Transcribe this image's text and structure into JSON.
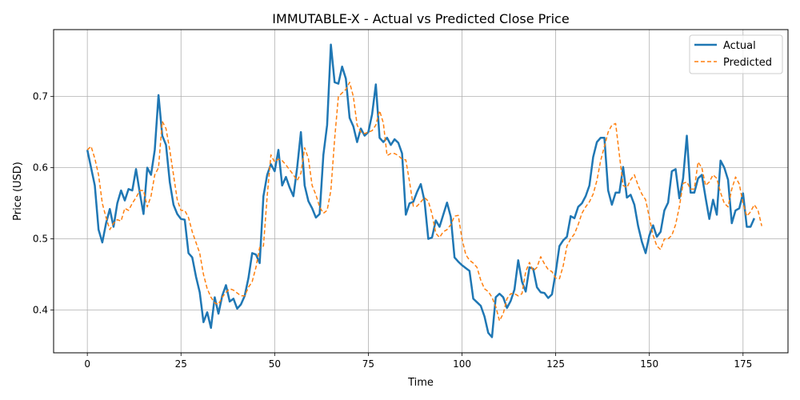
{
  "chart_data": {
    "type": "line",
    "title": "IMMUTABLE-X - Actual vs Predicted Close Price",
    "xlabel": "Time",
    "ylabel": "Price (USD)",
    "xlim": [
      -9,
      187
    ],
    "ylim": [
      0.34,
      0.794
    ],
    "xticks": [
      0,
      25,
      50,
      75,
      100,
      125,
      150,
      175
    ],
    "yticks": [
      0.4,
      0.5,
      0.6,
      0.7
    ],
    "ytick_labels": [
      "0.4",
      "0.5",
      "0.6",
      "0.7"
    ],
    "grid": true,
    "legend_position": "top-right",
    "series": [
      {
        "name": "Actual",
        "color": "#1f77b4",
        "style": "solid",
        "values": [
          0.625,
          0.6,
          0.575,
          0.513,
          0.495,
          0.522,
          0.542,
          0.517,
          0.55,
          0.568,
          0.554,
          0.57,
          0.568,
          0.598,
          0.565,
          0.535,
          0.6,
          0.59,
          0.625,
          0.702,
          0.645,
          0.632,
          0.58,
          0.548,
          0.535,
          0.528,
          0.527,
          0.48,
          0.474,
          0.447,
          0.425,
          0.383,
          0.397,
          0.375,
          0.418,
          0.395,
          0.42,
          0.435,
          0.412,
          0.416,
          0.402,
          0.408,
          0.42,
          0.445,
          0.48,
          0.478,
          0.466,
          0.56,
          0.59,
          0.605,
          0.595,
          0.625,
          0.575,
          0.587,
          0.572,
          0.56,
          0.6,
          0.65,
          0.575,
          0.553,
          0.543,
          0.53,
          0.535,
          0.618,
          0.66,
          0.773,
          0.72,
          0.718,
          0.742,
          0.725,
          0.67,
          0.658,
          0.636,
          0.655,
          0.645,
          0.65,
          0.675,
          0.717,
          0.642,
          0.636,
          0.642,
          0.632,
          0.64,
          0.635,
          0.62,
          0.534,
          0.55,
          0.552,
          0.566,
          0.577,
          0.553,
          0.5,
          0.502,
          0.526,
          0.517,
          0.534,
          0.551,
          0.531,
          0.474,
          0.468,
          0.463,
          0.459,
          0.455,
          0.416,
          0.411,
          0.406,
          0.391,
          0.368,
          0.362,
          0.418,
          0.423,
          0.418,
          0.403,
          0.413,
          0.429,
          0.47,
          0.44,
          0.426,
          0.46,
          0.458,
          0.432,
          0.425,
          0.424,
          0.417,
          0.422,
          0.453,
          0.49,
          0.498,
          0.503,
          0.532,
          0.529,
          0.545,
          0.55,
          0.56,
          0.575,
          0.615,
          0.636,
          0.642,
          0.642,
          0.568,
          0.548,
          0.565,
          0.565,
          0.601,
          0.558,
          0.562,
          0.548,
          0.518,
          0.496,
          0.48,
          0.505,
          0.519,
          0.503,
          0.51,
          0.54,
          0.551,
          0.595,
          0.598,
          0.557,
          0.585,
          0.645,
          0.565,
          0.565,
          0.585,
          0.59,
          0.558,
          0.528,
          0.555,
          0.534,
          0.61,
          0.6,
          0.583,
          0.522,
          0.54,
          0.543,
          0.564,
          0.517,
          0.517,
          0.529
        ]
      },
      {
        "name": "Predicted",
        "color": "#ff7f0e",
        "style": "dashed",
        "values": [
          0.625,
          0.63,
          0.613,
          0.59,
          0.55,
          0.53,
          0.513,
          0.522,
          0.527,
          0.525,
          0.543,
          0.54,
          0.55,
          0.558,
          0.568,
          0.568,
          0.545,
          0.56,
          0.59,
          0.6,
          0.665,
          0.655,
          0.625,
          0.59,
          0.555,
          0.54,
          0.54,
          0.53,
          0.51,
          0.495,
          0.48,
          0.45,
          0.43,
          0.418,
          0.41,
          0.408,
          0.418,
          0.425,
          0.43,
          0.428,
          0.424,
          0.42,
          0.42,
          0.432,
          0.44,
          0.46,
          0.488,
          0.49,
          0.56,
          0.618,
          0.608,
          0.612,
          0.61,
          0.604,
          0.597,
          0.59,
          0.582,
          0.592,
          0.628,
          0.613,
          0.575,
          0.562,
          0.545,
          0.536,
          0.54,
          0.568,
          0.64,
          0.7,
          0.705,
          0.71,
          0.72,
          0.7,
          0.66,
          0.65,
          0.648,
          0.65,
          0.652,
          0.66,
          0.68,
          0.663,
          0.617,
          0.62,
          0.62,
          0.617,
          0.612,
          0.611,
          0.58,
          0.546,
          0.546,
          0.552,
          0.558,
          0.553,
          0.535,
          0.508,
          0.502,
          0.51,
          0.513,
          0.52,
          0.532,
          0.533,
          0.5,
          0.478,
          0.47,
          0.466,
          0.46,
          0.442,
          0.43,
          0.426,
          0.418,
          0.405,
          0.385,
          0.395,
          0.416,
          0.423,
          0.423,
          0.42,
          0.423,
          0.454,
          0.467,
          0.455,
          0.46,
          0.475,
          0.465,
          0.457,
          0.454,
          0.445,
          0.444,
          0.462,
          0.49,
          0.5,
          0.507,
          0.52,
          0.536,
          0.545,
          0.552,
          0.563,
          0.582,
          0.61,
          0.63,
          0.65,
          0.66,
          0.662,
          0.618,
          0.575,
          0.572,
          0.583,
          0.59,
          0.575,
          0.563,
          0.555,
          0.53,
          0.505,
          0.49,
          0.485,
          0.5,
          0.5,
          0.505,
          0.52,
          0.545,
          0.578,
          0.58,
          0.57,
          0.57,
          0.608,
          0.6,
          0.575,
          0.58,
          0.59,
          0.585,
          0.565,
          0.55,
          0.545,
          0.57,
          0.587,
          0.577,
          0.55,
          0.532,
          0.538,
          0.548,
          0.54,
          0.518
        ]
      }
    ]
  }
}
